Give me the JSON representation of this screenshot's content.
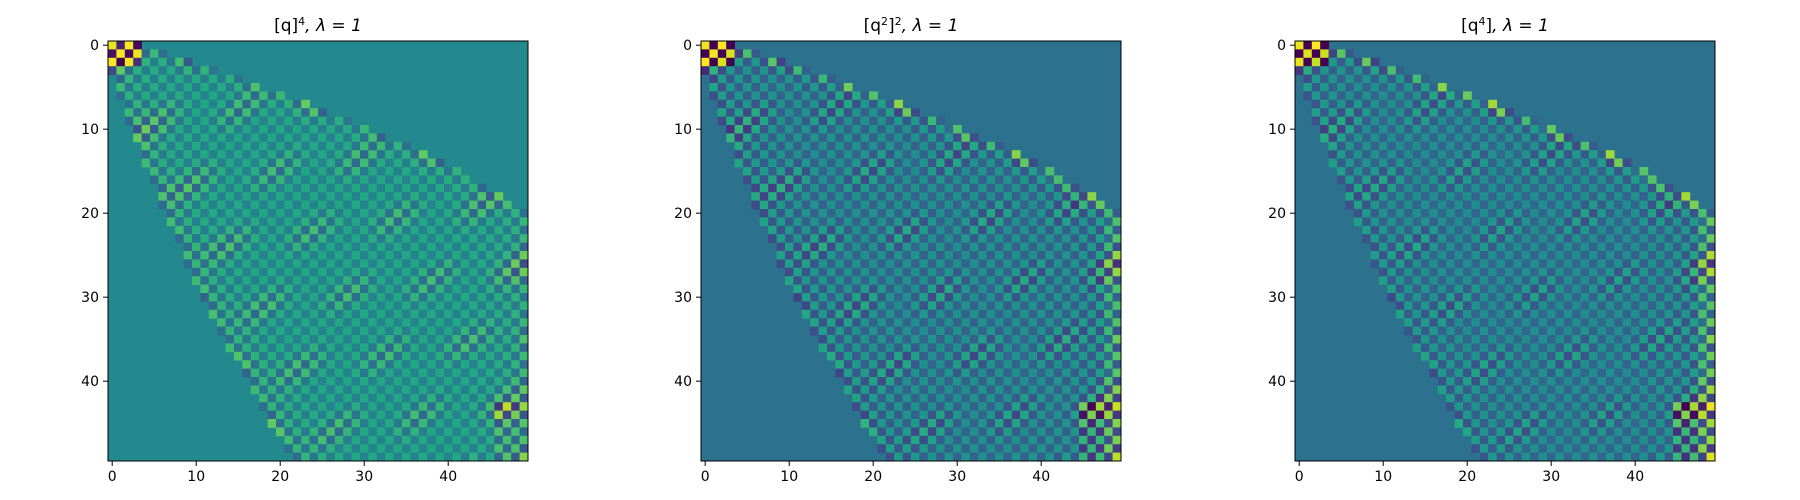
{
  "figure": {
    "background": "#ffffff"
  },
  "chart_data": [
    {
      "type": "heatmap",
      "title": "[q]⁴, λ = 1",
      "title_parts": {
        "base": "[q]",
        "sup": "4",
        "rest": ", λ = 1"
      },
      "variant": "q_pow4",
      "rows": 50,
      "cols": 50,
      "xlabel": "",
      "ylabel": "",
      "xticks": [
        0,
        10,
        20,
        30,
        40
      ],
      "yticks": [
        0,
        10,
        20,
        30,
        40
      ],
      "xlim": [
        -0.5,
        49.5
      ],
      "ylim": [
        49.5,
        -0.5
      ],
      "colormap": "viridis",
      "background_value": 0.52,
      "background_color": "#23898e",
      "grid": false,
      "legend": "none"
    },
    {
      "type": "heatmap",
      "title": "[q²]², λ = 1",
      "title_parts": {
        "base": "[q",
        "sup": "2",
        "mid": "]",
        "sup2": "2",
        "rest": ", λ = 1"
      },
      "variant": "q2_sq",
      "rows": 50,
      "cols": 50,
      "xlabel": "",
      "ylabel": "",
      "xticks": [
        0,
        10,
        20,
        30,
        40
      ],
      "yticks": [
        0,
        10,
        20,
        30,
        40
      ],
      "xlim": [
        -0.5,
        49.5
      ],
      "ylim": [
        49.5,
        -0.5
      ],
      "colormap": "viridis",
      "background_value": 0.41,
      "background_color": "#2c728e",
      "grid": false,
      "legend": "none"
    },
    {
      "type": "heatmap",
      "title": "[q⁴], λ = 1",
      "title_parts": {
        "base": "[q",
        "sup": "4",
        "mid": "]",
        "rest": ", λ = 1"
      },
      "variant": "q4",
      "rows": 50,
      "cols": 50,
      "xlabel": "",
      "ylabel": "",
      "xticks": [
        0,
        10,
        20,
        30,
        40
      ],
      "yticks": [
        0,
        10,
        20,
        30,
        40
      ],
      "xlim": [
        -0.5,
        49.5
      ],
      "ylim": [
        49.5,
        -0.5
      ],
      "colormap": "viridis",
      "background_value": 0.41,
      "background_color": "#2c728e",
      "grid": false,
      "legend": "none"
    }
  ]
}
